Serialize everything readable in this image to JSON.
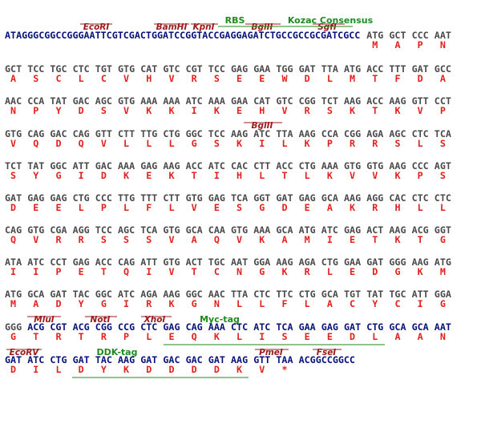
{
  "sequence": {
    "rows": [
      {
        "lead": "ATAGGGCGGCCGGGAATTCGTCGACTGGATCCGGTACCGAGGAGATCTGCCGCCGCGATCGCC",
        "codons": [
          "ATG",
          "GCT",
          "CCC",
          "AAT"
        ],
        "aa": [
          "M",
          "A",
          "P",
          "N"
        ]
      },
      {
        "codons": [
          "GCT",
          "TCC",
          "TGC",
          "CTC",
          "TGT",
          "GTG",
          "CAT",
          "GTC",
          "CGT",
          "TCC",
          "GAG",
          "GAA",
          "TGG",
          "GAT",
          "TTA",
          "ATG",
          "ACC",
          "TTT",
          "GAT",
          "GCC"
        ],
        "aa": [
          "A",
          "S",
          "C",
          "L",
          "C",
          "V",
          "H",
          "V",
          "R",
          "S",
          "E",
          "E",
          "W",
          "D",
          "L",
          "M",
          "T",
          "F",
          "D",
          "A"
        ]
      },
      {
        "codons": [
          "AAC",
          "CCA",
          "TAT",
          "GAC",
          "AGC",
          "GTG",
          "AAA",
          "AAA",
          "ATC",
          "AAA",
          "GAA",
          "CAT",
          "GTC",
          "CGG",
          "TCT",
          "AAG",
          "ACC",
          "AAG",
          "GTT",
          "CCT"
        ],
        "aa": [
          "N",
          "P",
          "Y",
          "D",
          "S",
          "V",
          "K",
          "K",
          "I",
          "K",
          "E",
          "H",
          "V",
          "R",
          "S",
          "K",
          "T",
          "K",
          "V",
          "P"
        ]
      },
      {
        "codons": [
          "GTG",
          "CAG",
          "GAC",
          "CAG",
          "GTT",
          "CTT",
          "TTG",
          "CTG",
          "GGC",
          "TCC",
          "AAG",
          "ATC",
          "TTA",
          "AAG",
          "CCA",
          "CGG",
          "AGA",
          "AGC",
          "CTC",
          "TCA"
        ],
        "aa": [
          "V",
          "Q",
          "D",
          "Q",
          "V",
          "L",
          "L",
          "L",
          "G",
          "S",
          "K",
          "I",
          "L",
          "K",
          "P",
          "R",
          "R",
          "S",
          "L",
          "S"
        ]
      },
      {
        "codons": [
          "TCT",
          "TAT",
          "GGC",
          "ATT",
          "GAC",
          "AAA",
          "GAG",
          "AAG",
          "ACC",
          "ATC",
          "CAC",
          "CTT",
          "ACC",
          "CTG",
          "AAA",
          "GTG",
          "GTG",
          "AAG",
          "CCC",
          "AGT"
        ],
        "aa": [
          "S",
          "Y",
          "G",
          "I",
          "D",
          "K",
          "E",
          "K",
          "T",
          "I",
          "H",
          "L",
          "T",
          "L",
          "K",
          "V",
          "V",
          "K",
          "P",
          "S"
        ]
      },
      {
        "codons": [
          "GAT",
          "GAG",
          "GAG",
          "CTG",
          "CCC",
          "TTG",
          "TTT",
          "CTT",
          "GTG",
          "GAG",
          "TCA",
          "GGT",
          "GAT",
          "GAG",
          "GCA",
          "AAG",
          "AGG",
          "CAC",
          "CTC",
          "CTC"
        ],
        "aa": [
          "D",
          "E",
          "E",
          "L",
          "P",
          "L",
          "F",
          "L",
          "V",
          "E",
          "S",
          "G",
          "D",
          "E",
          "A",
          "K",
          "R",
          "H",
          "L",
          "L"
        ]
      },
      {
        "codons": [
          "CAG",
          "GTG",
          "CGA",
          "AGG",
          "TCC",
          "AGC",
          "TCA",
          "GTG",
          "GCA",
          "CAA",
          "GTG",
          "AAA",
          "GCA",
          "ATG",
          "ATC",
          "GAG",
          "ACT",
          "AAG",
          "ACG",
          "GGT"
        ],
        "aa": [
          "Q",
          "V",
          "R",
          "R",
          "S",
          "S",
          "S",
          "V",
          "A",
          "Q",
          "V",
          "K",
          "A",
          "M",
          "I",
          "E",
          "T",
          "K",
          "T",
          "G"
        ]
      },
      {
        "codons": [
          "ATA",
          "ATC",
          "CCT",
          "GAG",
          "ACC",
          "CAG",
          "ATT",
          "GTG",
          "ACT",
          "TGC",
          "AAT",
          "GGA",
          "AAG",
          "AGA",
          "CTG",
          "GAA",
          "GAT",
          "GGG",
          "AAG",
          "ATG"
        ],
        "aa": [
          "I",
          "I",
          "P",
          "E",
          "T",
          "Q",
          "I",
          "V",
          "T",
          "C",
          "N",
          "G",
          "K",
          "R",
          "L",
          "E",
          "D",
          "G",
          "K",
          "M"
        ]
      },
      {
        "codons": [
          "ATG",
          "GCA",
          "GAT",
          "TAC",
          "GGC",
          "ATC",
          "AGA",
          "AAG",
          "GGC",
          "AAC",
          "TTA",
          "CTC",
          "TTC",
          "CTG",
          "GCA",
          "TGT",
          "TAT",
          "TGC",
          "ATT",
          "GGA"
        ],
        "aa": [
          "M",
          "A",
          "D",
          "Y",
          "G",
          "I",
          "R",
          "K",
          "G",
          "N",
          "L",
          "L",
          "F",
          "L",
          "A",
          "C",
          "Y",
          "C",
          "I",
          "G"
        ]
      },
      {
        "codons": [
          "GGG",
          "ACG",
          "CGT",
          "ACG",
          "CGG",
          "CCG",
          "CTC",
          "GAG",
          "CAG",
          "AAA",
          "CTC",
          "ATC",
          "TCA",
          "GAA",
          "GAG",
          "GAT",
          "CTG",
          "GCA",
          "GCA",
          "AAT"
        ],
        "aa": [
          "G",
          "T",
          "R",
          "T",
          "R",
          "P",
          "L",
          "E",
          "Q",
          "K",
          "L",
          "I",
          "S",
          "E",
          "E",
          "D",
          "L",
          "A",
          "A",
          "N"
        ],
        "vector_from": 1
      },
      {
        "codons": [
          "GAT",
          "ATC",
          "CTG",
          "GAT",
          "TAC",
          "AAG",
          "GAT",
          "GAC",
          "GAC",
          "GAT",
          "AAG",
          "GTT",
          "TAA"
        ],
        "aa": [
          "D",
          "I",
          "L",
          "D",
          "Y",
          "K",
          "D",
          "D",
          "D",
          "D",
          "K",
          "V",
          "*"
        ],
        "trail": "ACGGCCGGCC",
        "vector_from": 0
      }
    ],
    "annotations": [
      {
        "label": "EcoRI",
        "kind": "site"
      },
      {
        "label": "BamHI",
        "kind": "site"
      },
      {
        "label": "KpnI",
        "kind": "site"
      },
      {
        "label": "BglII",
        "kind": "site"
      },
      {
        "label": "SgfI",
        "kind": "site"
      },
      {
        "label": "RBS",
        "kind": "feature"
      },
      {
        "label": "Kozac Consensus",
        "kind": "feature"
      },
      {
        "label": "BglII",
        "kind": "site"
      },
      {
        "label": "MluI",
        "kind": "site"
      },
      {
        "label": "NotI",
        "kind": "site"
      },
      {
        "label": "XhoI",
        "kind": "site"
      },
      {
        "label": "Myc-tag",
        "kind": "feature"
      },
      {
        "label": "EcoRV",
        "kind": "site"
      },
      {
        "label": "DDK-tag",
        "kind": "feature"
      },
      {
        "label": "PmeI",
        "kind": "site"
      },
      {
        "label": "FseI",
        "kind": "site"
      }
    ]
  }
}
